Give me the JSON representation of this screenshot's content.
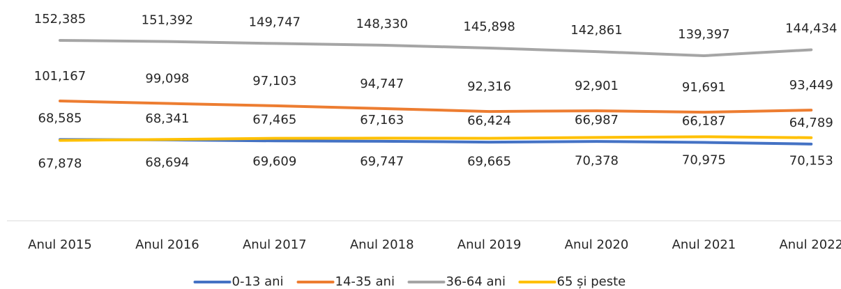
{
  "chart_data": {
    "type": "line",
    "categories": [
      "Anul 2015",
      "Anul 2016",
      "Anul 2017",
      "Anul 2018",
      "Anul 2019",
      "Anul 2020",
      "Anul 2021",
      "Anul 2022"
    ],
    "series": [
      {
        "name": "0-13 ani",
        "color": "#4472c4",
        "values": [
          68585,
          68341,
          67465,
          67163,
          66424,
          66987,
          66187,
          64789
        ],
        "value_labels": [
          "68,585",
          "68,341",
          "67,465",
          "67,163",
          "66,424",
          "66,987",
          "66,187",
          "64,789"
        ]
      },
      {
        "name": "14-35 ani",
        "color": "#ed7d31",
        "values": [
          101167,
          99098,
          97103,
          94747,
          92316,
          92901,
          91691,
          93449
        ],
        "value_labels": [
          "101,167",
          "99,098",
          "97,103",
          "94,747",
          "92,316",
          "92,901",
          "91,691",
          "93,449"
        ]
      },
      {
        "name": "36-64 ani",
        "color": "#a5a5a5",
        "values": [
          152385,
          151392,
          149747,
          148330,
          145898,
          142861,
          139397,
          144434
        ],
        "value_labels": [
          "152,385",
          "151,392",
          "149,747",
          "148,330",
          "145,898",
          "142,861",
          "139,397",
          "144,434"
        ]
      },
      {
        "name": "65 și peste",
        "color": "#ffc000",
        "values": [
          67878,
          68694,
          69609,
          69747,
          69665,
          70378,
          70975,
          70153
        ],
        "value_labels": [
          "67,878",
          "68,694",
          "69,609",
          "69,747",
          "69,665",
          "70,378",
          "70,975",
          "70,153"
        ]
      }
    ],
    "ylim": [
      0,
      170000
    ],
    "legend": "bottom"
  }
}
